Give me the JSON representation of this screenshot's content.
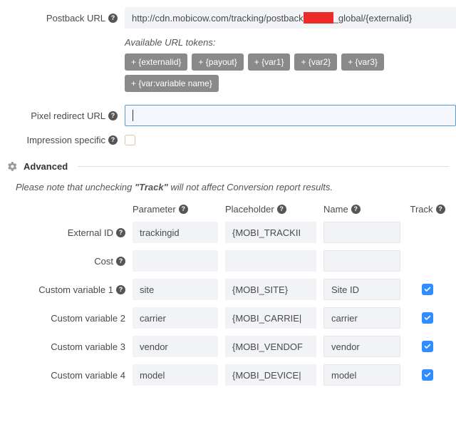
{
  "postback": {
    "label": "Postback URL",
    "url_prefix": "http://cdn.mobicow.com/tracking/postback",
    "url_suffix": "_global/{externalid}"
  },
  "tokens": {
    "label": "Available URL tokens:",
    "items": [
      "+ {externalid}",
      "+ {payout}",
      "+ {var1}",
      "+ {var2}",
      "+ {var3}",
      "+ {var:variable name}"
    ]
  },
  "pixel": {
    "label": "Pixel redirect URL",
    "value": ""
  },
  "impression": {
    "label": "Impression specific"
  },
  "advanced": {
    "title": "Advanced",
    "note_pre": "Please note that unchecking ",
    "note_bold": "\"Track\"",
    "note_post": " will not affect Conversion report results."
  },
  "headers": {
    "parameter": "Parameter",
    "placeholder": "Placeholder",
    "name": "Name",
    "track": "Track"
  },
  "rows": [
    {
      "label": "External ID",
      "help": true,
      "param": "trackingid",
      "placeholder": "{MOBI_TRACKII",
      "name": "",
      "track": null
    },
    {
      "label": "Cost",
      "help": true,
      "param": "",
      "placeholder": "",
      "name": "",
      "track": null
    },
    {
      "label": "Custom variable 1",
      "help": true,
      "param": "site",
      "placeholder": "{MOBI_SITE}",
      "name": "Site ID",
      "track": true
    },
    {
      "label": "Custom variable 2",
      "help": false,
      "param": "carrier",
      "placeholder": "{MOBI_CARRIE|",
      "name": "carrier",
      "track": true
    },
    {
      "label": "Custom variable 3",
      "help": false,
      "param": "vendor",
      "placeholder": "{MOBI_VENDOF",
      "name": "vendor",
      "track": true
    },
    {
      "label": "Custom variable 4",
      "help": false,
      "param": "model",
      "placeholder": "{MOBI_DEVICE|",
      "name": "model",
      "track": true
    }
  ],
  "colors": {
    "accent": "#2f8dff",
    "redact": "#ec2a27",
    "token_bg": "#8a8a8a"
  }
}
